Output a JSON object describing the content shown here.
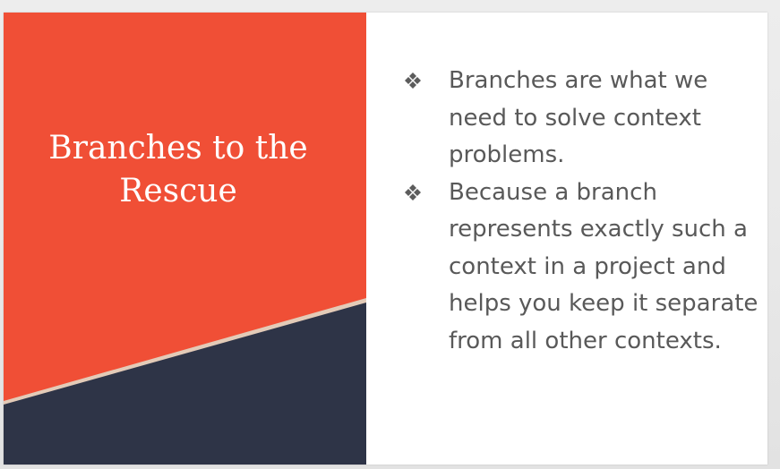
{
  "slide": {
    "title": "Branches to the\nRescue",
    "bullets": [
      {
        "icon": "diamond-bullet-icon",
        "text": "Branches are what we need to solve context problems."
      },
      {
        "icon": "diamond-bullet-icon",
        "text": "Because a branch represents exactly such a context in a project and helps you keep it separate from all other contexts."
      }
    ]
  },
  "colors": {
    "title_panel": "#f04f36",
    "title_panel_dark": "#2e3447",
    "divider_stripe": "#e3cbb8",
    "body_text": "#595959",
    "title_text": "#ffffff"
  }
}
